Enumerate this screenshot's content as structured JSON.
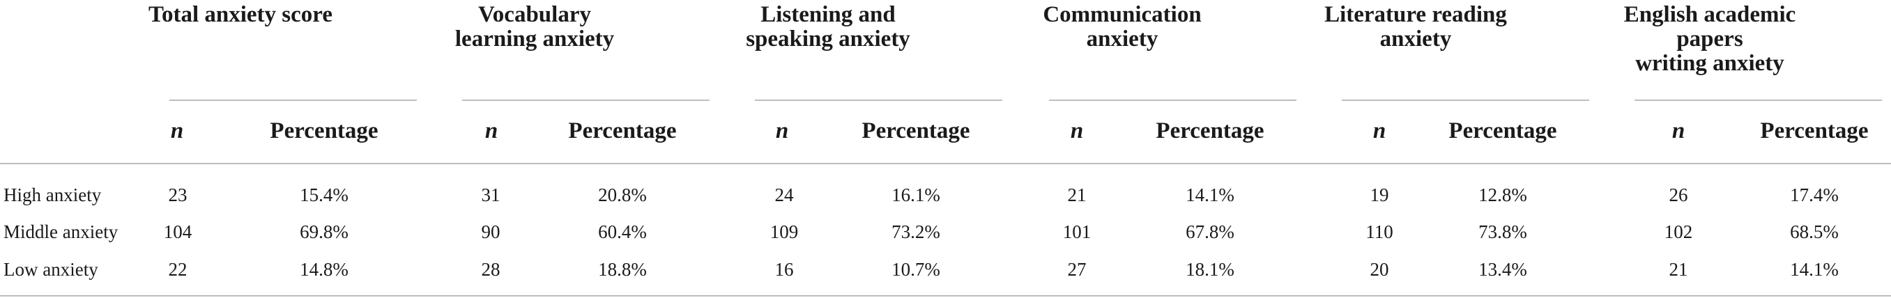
{
  "groups": [
    {
      "title": "Total anxiety score"
    },
    {
      "title": "Vocabulary\nlearning anxiety"
    },
    {
      "title": "Listening and\nspeaking anxiety"
    },
    {
      "title": "Communication\nanxiety"
    },
    {
      "title": "Literature reading\nanxiety"
    },
    {
      "title": "English academic\npapers\nwriting anxiety"
    }
  ],
  "subheaders": {
    "n": "n",
    "percentage": "Percentage"
  },
  "rows": [
    {
      "label": "High anxiety",
      "cells": [
        {
          "n": "23",
          "pct": "15.4%"
        },
        {
          "n": "31",
          "pct": "20.8%"
        },
        {
          "n": "24",
          "pct": "16.1%"
        },
        {
          "n": "21",
          "pct": "14.1%"
        },
        {
          "n": "19",
          "pct": "12.8%"
        },
        {
          "n": "26",
          "pct": "17.4%"
        }
      ]
    },
    {
      "label": "Middle anxiety",
      "cells": [
        {
          "n": "104",
          "pct": "69.8%"
        },
        {
          "n": "90",
          "pct": "60.4%"
        },
        {
          "n": "109",
          "pct": "73.2%"
        },
        {
          "n": "101",
          "pct": "67.8%"
        },
        {
          "n": "110",
          "pct": "73.8%"
        },
        {
          "n": "102",
          "pct": "68.5%"
        }
      ]
    },
    {
      "label": "Low anxiety",
      "cells": [
        {
          "n": "22",
          "pct": "14.8%"
        },
        {
          "n": "28",
          "pct": "18.8%"
        },
        {
          "n": "16",
          "pct": "10.7%"
        },
        {
          "n": "27",
          "pct": "18.1%"
        },
        {
          "n": "20",
          "pct": "13.4%"
        },
        {
          "n": "21",
          "pct": "14.1%"
        }
      ]
    }
  ]
}
